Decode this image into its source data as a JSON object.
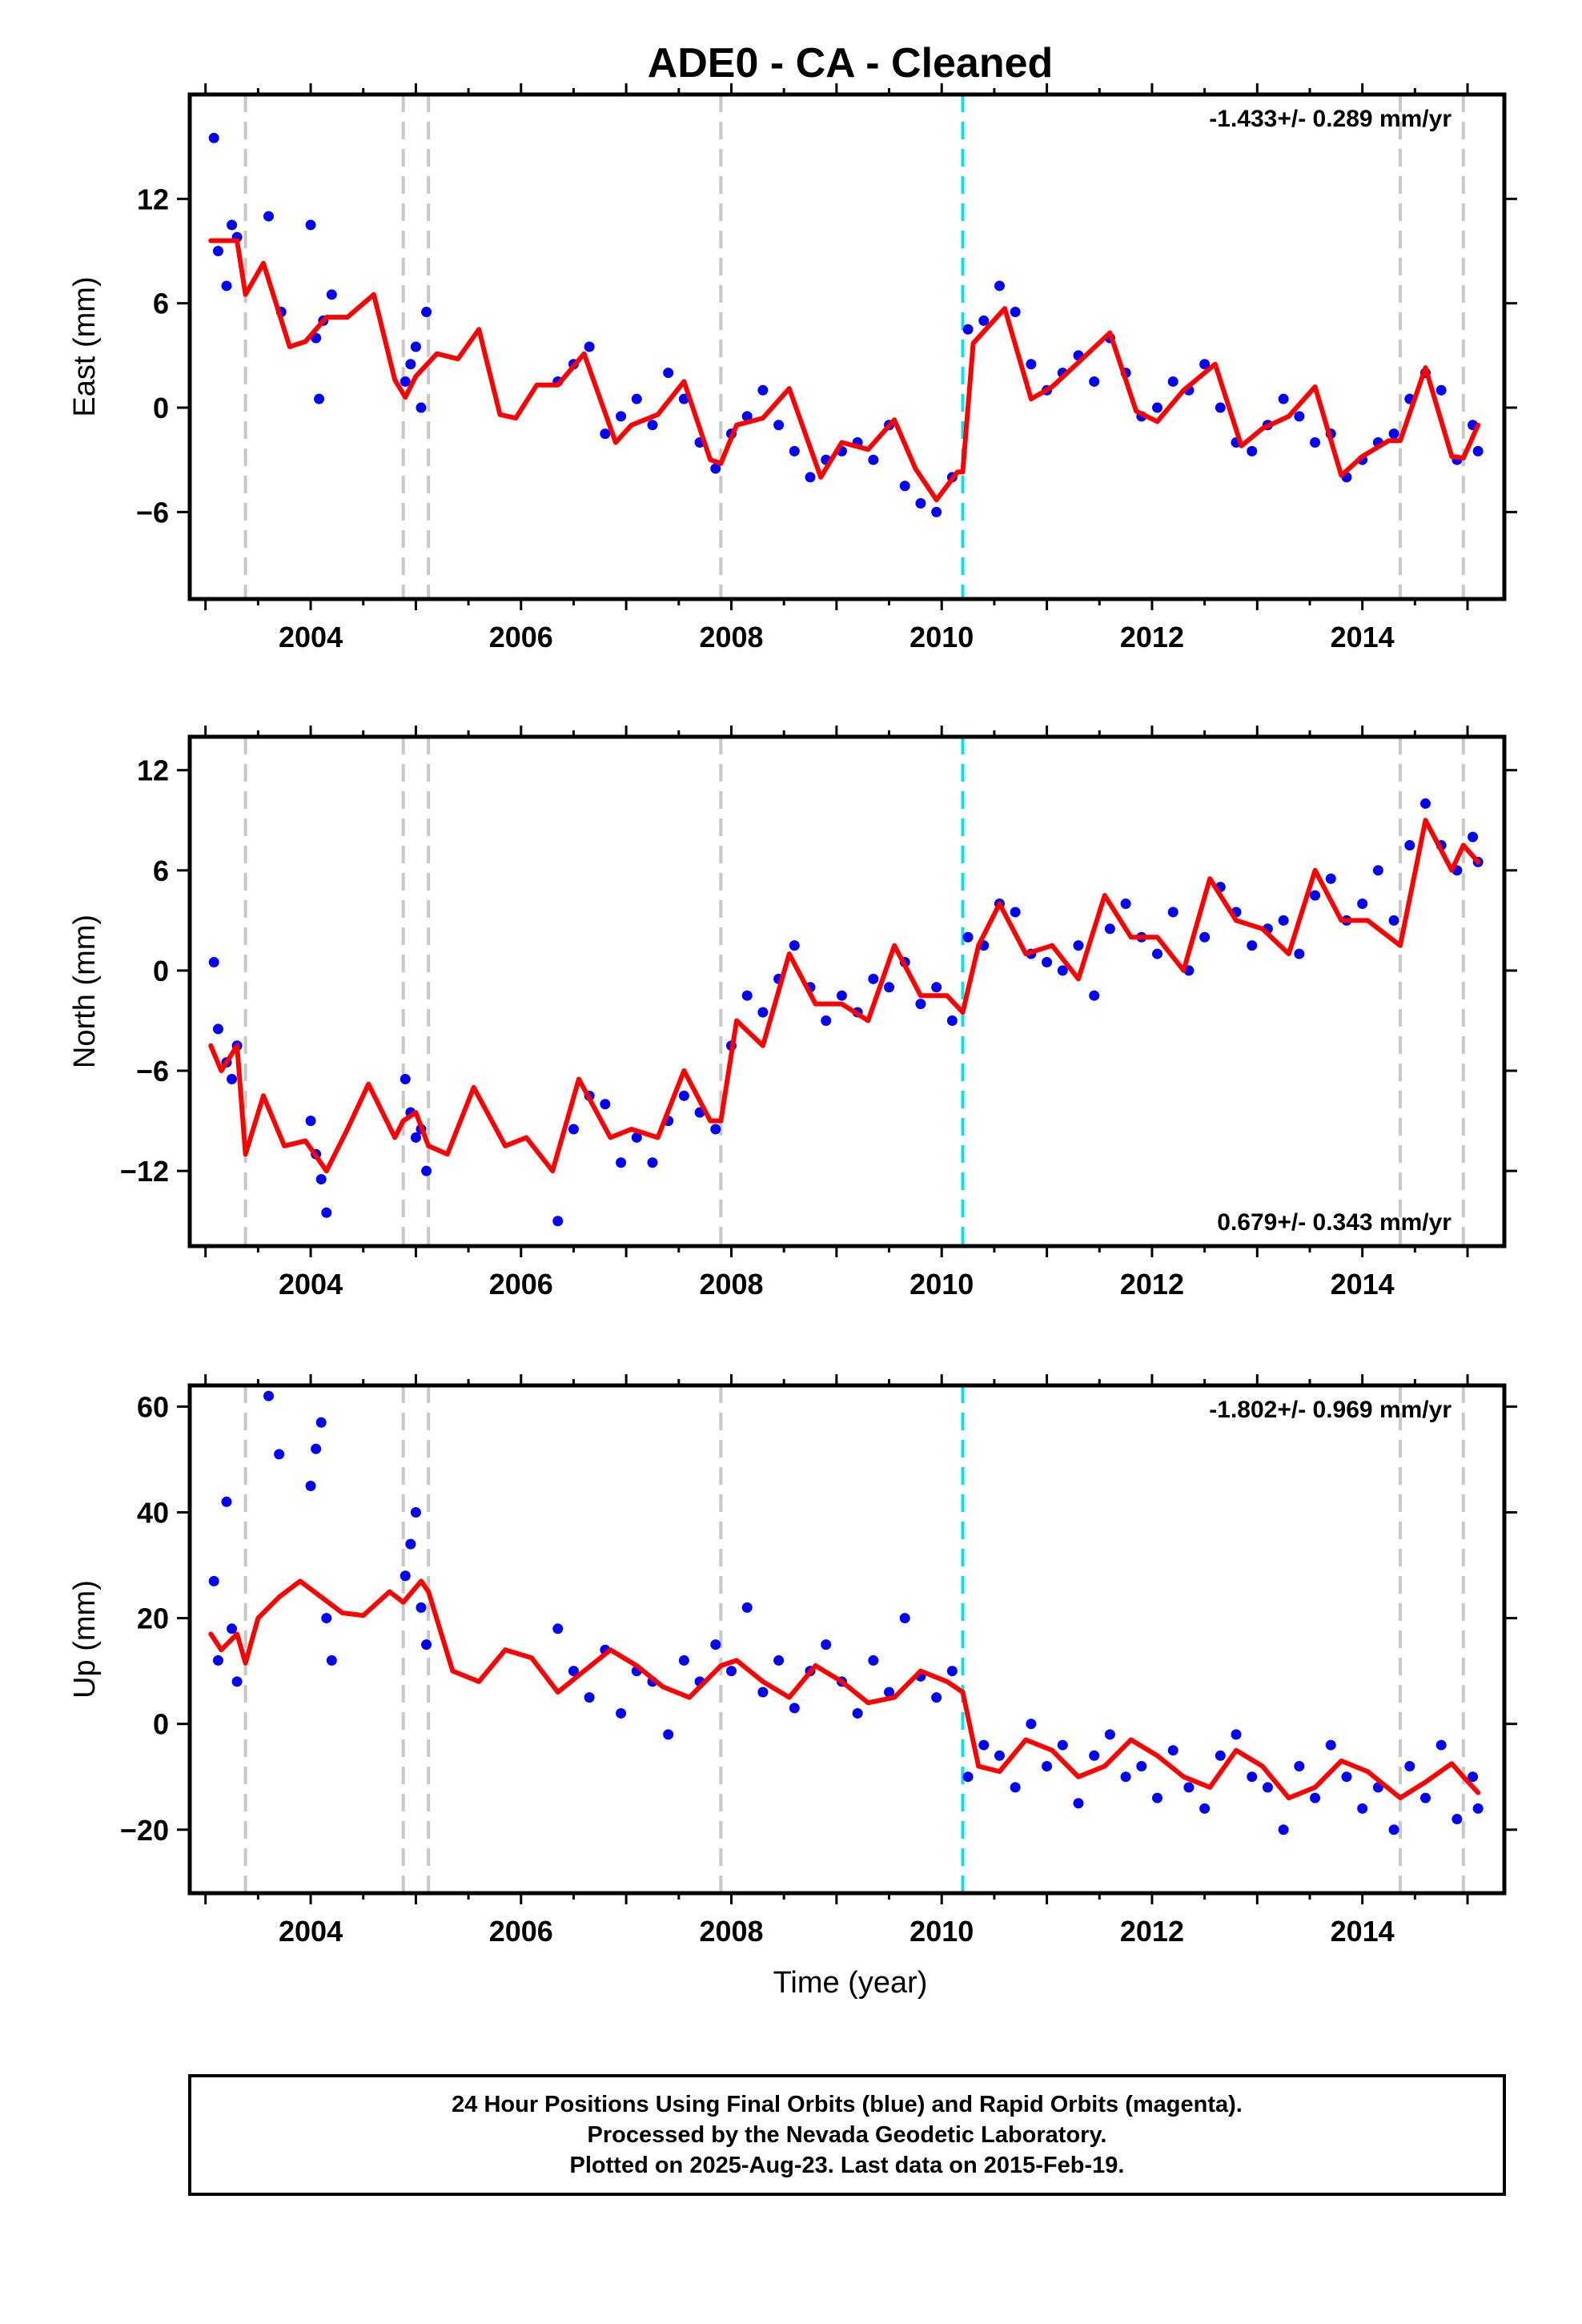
{
  "title": "ADE0  - CA - Cleaned",
  "xlabel": "Time (year)",
  "footer": {
    "line1": "24 Hour Positions Using Final Orbits (blue) and Rapid Orbits (magenta).",
    "line2": "Processed by the Nevada Geodetic Laboratory.",
    "line3": "Plotted on 2025-Aug-23. Last data on 2015-Feb-19."
  },
  "colors": {
    "final_orbit_points": "#0000ff",
    "rapid_orbit_points": "#ff00ff",
    "model_fit": "#ff0000",
    "equipment_change_lines": "#c8c8c8",
    "earthquake_line": "#00e5ee"
  },
  "chart_data": [
    {
      "type": "scatter",
      "component": "east",
      "ylabel": "East (mm)",
      "rate_text": "-1.433+/- 0.289 mm/yr",
      "rate_position": "top-right",
      "xlim": [
        2002.85,
        2015.35
      ],
      "ylim": [
        -11,
        18
      ],
      "xticks": [
        2004,
        2006,
        2008,
        2010,
        2012,
        2014
      ],
      "xtick_labels": [
        "2004",
        "2006",
        "2008",
        "2010",
        "2012",
        "2014"
      ],
      "yticks": [
        -6,
        0,
        6,
        12
      ],
      "ytick_labels": [
        "−6",
        "0",
        "6",
        "12"
      ],
      "grid": false,
      "vertical_lines": {
        "equipment": [
          2003.38,
          2004.88,
          2005.12,
          2007.9,
          2014.36,
          2014.96
        ],
        "earthquake": [
          2010.2
        ]
      },
      "series": [
        {
          "role": "positions",
          "x": [
            2003.08,
            2003.12,
            2003.2,
            2003.25,
            2003.3,
            2003.6,
            2003.72,
            2004.0,
            2004.05,
            2004.08,
            2004.12,
            2004.2,
            2004.9,
            2004.95,
            2005.0,
            2005.05,
            2005.1,
            2006.35,
            2006.5,
            2006.65,
            2006.8,
            2006.95,
            2007.1,
            2007.25,
            2007.4,
            2007.55,
            2007.7,
            2007.85,
            2008.0,
            2008.15,
            2008.3,
            2008.45,
            2008.6,
            2008.75,
            2008.9,
            2009.05,
            2009.2,
            2009.35,
            2009.5,
            2009.65,
            2009.8,
            2009.95,
            2010.1,
            2010.25,
            2010.4,
            2010.55,
            2010.7,
            2010.85,
            2011.0,
            2011.15,
            2011.3,
            2011.45,
            2011.6,
            2011.75,
            2011.9,
            2012.05,
            2012.2,
            2012.35,
            2012.5,
            2012.65,
            2012.8,
            2012.95,
            2013.1,
            2013.25,
            2013.4,
            2013.55,
            2013.7,
            2013.85,
            2014.0,
            2014.15,
            2014.3,
            2014.45,
            2014.6,
            2014.75,
            2014.9,
            2015.05,
            2015.1
          ],
          "y": [
            15.5,
            9.0,
            7.0,
            10.5,
            9.8,
            11.0,
            5.5,
            10.5,
            4.0,
            0.5,
            5.0,
            6.5,
            1.5,
            2.5,
            3.5,
            0.0,
            5.5,
            1.5,
            2.5,
            3.5,
            -1.5,
            -0.5,
            0.5,
            -1.0,
            2.0,
            0.5,
            -2.0,
            -3.5,
            -1.5,
            -0.5,
            1.0,
            -1.0,
            -2.5,
            -4.0,
            -3.0,
            -2.5,
            -2.0,
            -3.0,
            -1.0,
            -4.5,
            -5.5,
            -6.0,
            -4.0,
            4.5,
            5.0,
            7.0,
            5.5,
            2.5,
            1.0,
            2.0,
            3.0,
            1.5,
            4.0,
            2.0,
            -0.5,
            0.0,
            1.5,
            1.0,
            2.5,
            0.0,
            -2.0,
            -2.5,
            -1.0,
            0.5,
            -0.5,
            -2.0,
            -1.5,
            -4.0,
            -3.0,
            -2.0,
            -1.5,
            0.5,
            2.0,
            1.0,
            -3.0,
            -1.0,
            -2.5
          ]
        },
        {
          "role": "model",
          "x": [
            2003.05,
            2003.3,
            2003.38,
            2003.55,
            2003.8,
            2003.95,
            2004.15,
            2004.35,
            2004.6,
            2004.8,
            2004.9,
            2005.0,
            2005.2,
            2005.4,
            2005.6,
            2005.8,
            2005.95,
            2006.15,
            2006.35,
            2006.6,
            2006.9,
            2007.05,
            2007.3,
            2007.55,
            2007.8,
            2007.9,
            2008.05,
            2008.3,
            2008.55,
            2008.85,
            2009.05,
            2009.3,
            2009.55,
            2009.75,
            2009.95,
            2010.15,
            2010.2,
            2010.3,
            2010.6,
            2010.85,
            2011.05,
            2011.3,
            2011.6,
            2011.85,
            2012.05,
            2012.3,
            2012.6,
            2012.85,
            2013.05,
            2013.3,
            2013.55,
            2013.8,
            2014.0,
            2014.25,
            2014.36,
            2014.6,
            2014.85,
            2014.96,
            2015.1
          ],
          "y": [
            9.6,
            9.6,
            6.5,
            8.3,
            3.5,
            3.8,
            5.2,
            5.2,
            6.5,
            1.6,
            0.6,
            1.8,
            3.1,
            2.8,
            4.5,
            -0.4,
            -0.6,
            1.3,
            1.3,
            3.1,
            -2.0,
            -1.0,
            -0.4,
            1.5,
            -3.0,
            -3.2,
            -1.0,
            -0.6,
            1.1,
            -4.0,
            -2.0,
            -2.4,
            -0.7,
            -3.5,
            -5.3,
            -3.7,
            -3.7,
            3.7,
            5.7,
            0.5,
            1.2,
            2.6,
            4.3,
            -0.2,
            -0.8,
            1.0,
            2.5,
            -2.2,
            -1.2,
            -0.5,
            1.2,
            -3.9,
            -2.8,
            -1.9,
            -1.9,
            2.3,
            -2.8,
            -2.9,
            -1.0
          ]
        }
      ]
    },
    {
      "type": "scatter",
      "component": "north",
      "ylabel": "North (mm)",
      "rate_text": "0.679+/- 0.343 mm/yr",
      "rate_position": "bottom-right",
      "xlim": [
        2002.85,
        2015.35
      ],
      "ylim": [
        -16.5,
        14
      ],
      "xticks": [
        2004,
        2006,
        2008,
        2010,
        2012,
        2014
      ],
      "xtick_labels": [
        "2004",
        "2006",
        "2008",
        "2010",
        "2012",
        "2014"
      ],
      "yticks": [
        -12,
        -6,
        0,
        6,
        12
      ],
      "ytick_labels": [
        "−12",
        "−6",
        "0",
        "6",
        "12"
      ],
      "grid": false,
      "vertical_lines": {
        "equipment": [
          2003.38,
          2004.88,
          2005.12,
          2007.9,
          2014.36,
          2014.96
        ],
        "earthquake": [
          2010.2
        ]
      },
      "series": [
        {
          "role": "positions",
          "x": [
            2003.08,
            2003.12,
            2003.2,
            2003.25,
            2003.3,
            2004.0,
            2004.05,
            2004.1,
            2004.15,
            2004.9,
            2004.95,
            2005.0,
            2005.05,
            2005.1,
            2006.35,
            2006.5,
            2006.65,
            2006.8,
            2006.95,
            2007.1,
            2007.25,
            2007.4,
            2007.55,
            2007.7,
            2007.85,
            2008.0,
            2008.15,
            2008.3,
            2008.45,
            2008.6,
            2008.75,
            2008.9,
            2009.05,
            2009.2,
            2009.35,
            2009.5,
            2009.65,
            2009.8,
            2009.95,
            2010.1,
            2010.25,
            2010.4,
            2010.55,
            2010.7,
            2010.85,
            2011.0,
            2011.15,
            2011.3,
            2011.45,
            2011.6,
            2011.75,
            2011.9,
            2012.05,
            2012.2,
            2012.35,
            2012.5,
            2012.65,
            2012.8,
            2012.95,
            2013.1,
            2013.25,
            2013.4,
            2013.55,
            2013.7,
            2013.85,
            2014.0,
            2014.15,
            2014.3,
            2014.45,
            2014.6,
            2014.75,
            2014.9,
            2015.05,
            2015.1
          ],
          "y": [
            0.5,
            -3.5,
            -5.5,
            -6.5,
            -4.5,
            -9.0,
            -11.0,
            -12.5,
            -14.5,
            -6.5,
            -8.5,
            -10.0,
            -9.5,
            -12.0,
            -15.0,
            -9.5,
            -7.5,
            -8.0,
            -11.5,
            -10.0,
            -11.5,
            -9.0,
            -7.5,
            -8.5,
            -9.5,
            -4.5,
            -1.5,
            -2.5,
            -0.5,
            1.5,
            -1.0,
            -3.0,
            -1.5,
            -2.5,
            -0.5,
            -1.0,
            0.5,
            -2.0,
            -1.0,
            -3.0,
            2.0,
            1.5,
            4.0,
            3.5,
            1.0,
            0.5,
            0.0,
            1.5,
            -1.5,
            2.5,
            4.0,
            2.0,
            1.0,
            3.5,
            0.0,
            2.0,
            5.0,
            3.5,
            1.5,
            2.5,
            3.0,
            1.0,
            4.5,
            5.5,
            3.0,
            4.0,
            6.0,
            3.0,
            7.5,
            10.0,
            7.5,
            6.0,
            8.0,
            6.5
          ]
        },
        {
          "role": "model",
          "x": [
            2003.05,
            2003.15,
            2003.3,
            2003.38,
            2003.55,
            2003.75,
            2003.95,
            2004.15,
            2004.35,
            2004.55,
            2004.8,
            2004.88,
            2005.0,
            2005.12,
            2005.3,
            2005.55,
            2005.85,
            2006.05,
            2006.3,
            2006.55,
            2006.85,
            2007.05,
            2007.3,
            2007.55,
            2007.8,
            2007.9,
            2008.05,
            2008.3,
            2008.55,
            2008.8,
            2009.05,
            2009.3,
            2009.55,
            2009.8,
            2010.05,
            2010.2,
            2010.35,
            2010.55,
            2010.8,
            2011.05,
            2011.3,
            2011.55,
            2011.8,
            2012.05,
            2012.3,
            2012.55,
            2012.8,
            2013.05,
            2013.3,
            2013.55,
            2013.8,
            2014.05,
            2014.36,
            2014.6,
            2014.85,
            2014.96,
            2015.1
          ],
          "y": [
            -4.5,
            -6.0,
            -4.5,
            -11.0,
            -7.5,
            -10.5,
            -10.2,
            -12.0,
            -9.5,
            -6.8,
            -10.0,
            -9.0,
            -8.5,
            -10.5,
            -11.0,
            -7.0,
            -10.5,
            -10.0,
            -12.0,
            -6.5,
            -10.0,
            -9.5,
            -10.0,
            -6.0,
            -9.0,
            -9.0,
            -3.0,
            -4.5,
            1.0,
            -2.0,
            -2.0,
            -3.0,
            1.5,
            -1.5,
            -1.5,
            -2.5,
            1.5,
            4.0,
            1.0,
            1.5,
            -0.5,
            4.5,
            2.0,
            2.0,
            0.0,
            5.5,
            3.0,
            2.5,
            1.0,
            6.0,
            3.0,
            3.0,
            1.5,
            9.0,
            6.0,
            7.5,
            6.5
          ]
        }
      ]
    },
    {
      "type": "scatter",
      "component": "up",
      "ylabel": "Up (mm)",
      "rate_text": "-1.802+/- 0.969 mm/yr",
      "rate_position": "top-right",
      "xlim": [
        2002.85,
        2015.35
      ],
      "ylim": [
        -32,
        64
      ],
      "xticks": [
        2004,
        2006,
        2008,
        2010,
        2012,
        2014
      ],
      "xtick_labels": [
        "2004",
        "2006",
        "2008",
        "2010",
        "2012",
        "2014"
      ],
      "yticks": [
        -20,
        0,
        20,
        40,
        60
      ],
      "ytick_labels": [
        "−20",
        "0",
        "20",
        "40",
        "60"
      ],
      "grid": false,
      "vertical_lines": {
        "equipment": [
          2003.38,
          2004.88,
          2005.12,
          2007.9,
          2014.36,
          2014.96
        ],
        "earthquake": [
          2010.2
        ]
      },
      "series": [
        {
          "role": "positions",
          "x": [
            2003.08,
            2003.12,
            2003.2,
            2003.25,
            2003.3,
            2003.6,
            2003.7,
            2004.0,
            2004.05,
            2004.1,
            2004.15,
            2004.2,
            2004.9,
            2004.95,
            2005.0,
            2005.05,
            2005.1,
            2006.35,
            2006.5,
            2006.65,
            2006.8,
            2006.95,
            2007.1,
            2007.25,
            2007.4,
            2007.55,
            2007.7,
            2007.85,
            2008.0,
            2008.15,
            2008.3,
            2008.45,
            2008.6,
            2008.75,
            2008.9,
            2009.05,
            2009.2,
            2009.35,
            2009.5,
            2009.65,
            2009.8,
            2009.95,
            2010.1,
            2010.25,
            2010.4,
            2010.55,
            2010.7,
            2010.85,
            2011.0,
            2011.15,
            2011.3,
            2011.45,
            2011.6,
            2011.75,
            2011.9,
            2012.05,
            2012.2,
            2012.35,
            2012.5,
            2012.65,
            2012.8,
            2012.95,
            2013.1,
            2013.25,
            2013.4,
            2013.55,
            2013.7,
            2013.85,
            2014.0,
            2014.15,
            2014.3,
            2014.45,
            2014.6,
            2014.75,
            2014.9,
            2015.05,
            2015.1
          ],
          "y": [
            27.0,
            12.0,
            42.0,
            18.0,
            8.0,
            62.0,
            51.0,
            45.0,
            52.0,
            57.0,
            20.0,
            12.0,
            28.0,
            34.0,
            40.0,
            22.0,
            15.0,
            18.0,
            10.0,
            5.0,
            14.0,
            2.0,
            10.0,
            8.0,
            -2.0,
            12.0,
            8.0,
            15.0,
            10.0,
            22.0,
            6.0,
            12.0,
            3.0,
            10.0,
            15.0,
            8.0,
            2.0,
            12.0,
            6.0,
            20.0,
            9.0,
            5.0,
            10.0,
            -10.0,
            -4.0,
            -6.0,
            -12.0,
            0.0,
            -8.0,
            -4.0,
            -15.0,
            -6.0,
            -2.0,
            -10.0,
            -8.0,
            -14.0,
            -5.0,
            -12.0,
            -16.0,
            -6.0,
            -2.0,
            -10.0,
            -12.0,
            -20.0,
            -8.0,
            -14.0,
            -4.0,
            -10.0,
            -16.0,
            -12.0,
            -20.0,
            -8.0,
            -14.0,
            -4.0,
            -18.0,
            -10.0,
            -16.0
          ]
        },
        {
          "role": "model",
          "x": [
            2003.05,
            2003.15,
            2003.3,
            2003.38,
            2003.5,
            2003.7,
            2003.9,
            2004.1,
            2004.3,
            2004.5,
            2004.75,
            2004.88,
            2005.05,
            2005.12,
            2005.35,
            2005.6,
            2005.85,
            2006.1,
            2006.35,
            2006.6,
            2006.85,
            2007.1,
            2007.35,
            2007.6,
            2007.9,
            2008.05,
            2008.3,
            2008.55,
            2008.8,
            2009.05,
            2009.3,
            2009.55,
            2009.8,
            2010.05,
            2010.2,
            2010.35,
            2010.55,
            2010.8,
            2011.05,
            2011.3,
            2011.55,
            2011.8,
            2012.05,
            2012.3,
            2012.55,
            2012.8,
            2013.05,
            2013.3,
            2013.55,
            2013.8,
            2014.05,
            2014.36,
            2014.6,
            2014.85,
            2014.96,
            2015.1
          ],
          "y": [
            17.0,
            14.0,
            17.0,
            11.5,
            20.0,
            24.0,
            27.0,
            24.0,
            21.0,
            20.5,
            25.0,
            23.0,
            27.0,
            25.0,
            10.0,
            8.0,
            14.0,
            12.5,
            6.0,
            10.0,
            14.0,
            11.0,
            7.0,
            5.0,
            11.0,
            12.0,
            8.0,
            5.0,
            11.0,
            8.0,
            4.0,
            5.0,
            10.0,
            8.0,
            6.0,
            -8.0,
            -9.0,
            -3.0,
            -5.0,
            -10.0,
            -8.0,
            -3.0,
            -6.0,
            -10.0,
            -12.0,
            -5.0,
            -8.0,
            -14.0,
            -12.0,
            -7.0,
            -9.0,
            -14.0,
            -11.0,
            -7.5,
            -10.0,
            -13.0
          ]
        }
      ]
    }
  ]
}
